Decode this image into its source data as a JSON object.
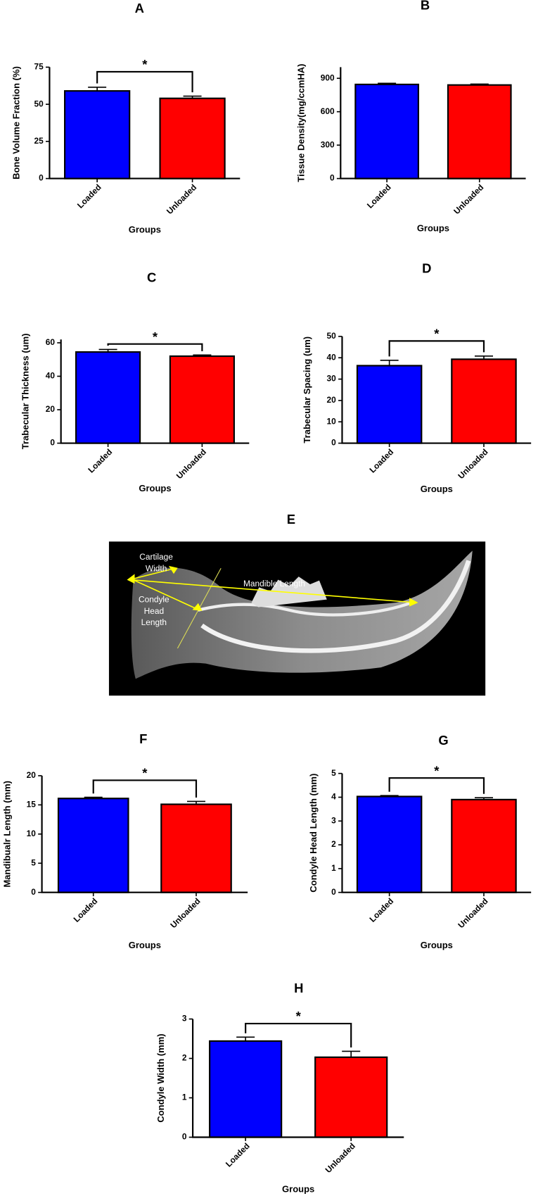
{
  "chart_data": [
    {
      "type": "bar",
      "title": "A",
      "xlabel": "Groups",
      "ylabel": "Bone Volume Fraction (%)",
      "categories": [
        "Loaded",
        "Unloaded"
      ],
      "values": [
        59,
        54
      ],
      "errors": [
        2.5,
        1.5
      ],
      "colors": [
        "#0000ff",
        "#ff0000"
      ],
      "ylim": [
        0,
        75
      ],
      "yticks": [
        0,
        25,
        50,
        75
      ],
      "annotation": "*"
    },
    {
      "type": "bar",
      "title": "B",
      "xlabel": "Groups",
      "ylabel": "Tissue Density(mg/ccmHA)",
      "categories": [
        "Loaded",
        "Unloaded"
      ],
      "values": [
        845,
        840
      ],
      "errors": [
        10,
        8
      ],
      "colors": [
        "#0000ff",
        "#ff0000"
      ],
      "ylim": [
        0,
        1000
      ],
      "yticks": [
        0,
        300,
        600,
        900
      ]
    },
    {
      "type": "bar",
      "title": "C",
      "xlabel": "Groups",
      "ylabel": "Trabecular Thickness (um)",
      "categories": [
        "Loaded",
        "Unloaded"
      ],
      "values": [
        54.5,
        52
      ],
      "errors": [
        1.5,
        0.7
      ],
      "colors": [
        "#0000ff",
        "#ff0000"
      ],
      "ylim": [
        0,
        62
      ],
      "yticks": [
        0,
        20,
        40,
        60
      ],
      "annotation": "*"
    },
    {
      "type": "bar",
      "title": "D",
      "xlabel": "Groups",
      "ylabel": "Trabecular Spacing (um)",
      "categories": [
        "Loaded",
        "Unloaded"
      ],
      "values": [
        36.3,
        39.3
      ],
      "errors": [
        2.5,
        1.5
      ],
      "colors": [
        "#0000ff",
        "#ff0000"
      ],
      "ylim": [
        0,
        50
      ],
      "yticks": [
        0,
        10,
        20,
        30,
        40,
        50
      ],
      "annotation": "*"
    },
    {
      "type": "bar",
      "title": "F",
      "xlabel": "Groups",
      "ylabel": "Mandibualr Length (mm)",
      "categories": [
        "Loaded",
        "Unloaded"
      ],
      "values": [
        16.1,
        15.1
      ],
      "errors": [
        0.2,
        0.5
      ],
      "colors": [
        "#0000ff",
        "#ff0000"
      ],
      "ylim": [
        0,
        20
      ],
      "yticks": [
        0,
        5,
        10,
        15,
        20
      ],
      "annotation": "*"
    },
    {
      "type": "bar",
      "title": "G",
      "xlabel": "Groups",
      "ylabel": "Condyle Head Length (mm)",
      "categories": [
        "Loaded",
        "Unloaded"
      ],
      "values": [
        4.03,
        3.9
      ],
      "errors": [
        0.04,
        0.08
      ],
      "colors": [
        "#0000ff",
        "#ff0000"
      ],
      "ylim": [
        0,
        5
      ],
      "yticks": [
        0,
        1,
        2,
        3,
        4,
        5
      ],
      "annotation": "*"
    },
    {
      "type": "bar",
      "title": "H",
      "xlabel": "Groups",
      "ylabel": "Condyle Width (mm)",
      "categories": [
        "Loaded",
        "Unloaded"
      ],
      "values": [
        2.44,
        2.03
      ],
      "errors": [
        0.1,
        0.15
      ],
      "colors": [
        "#0000ff",
        "#ff0000"
      ],
      "ylim": [
        0,
        3
      ],
      "yticks": [
        0,
        1,
        2,
        3
      ],
      "annotation": "*"
    }
  ],
  "image": {
    "title": "E",
    "labels": [
      {
        "lines": [
          "Cartilage",
          "Width"
        ]
      },
      {
        "lines": [
          "Condyle",
          "Head",
          "Length"
        ]
      },
      {
        "lines": [
          "Mandible Length"
        ]
      }
    ]
  }
}
